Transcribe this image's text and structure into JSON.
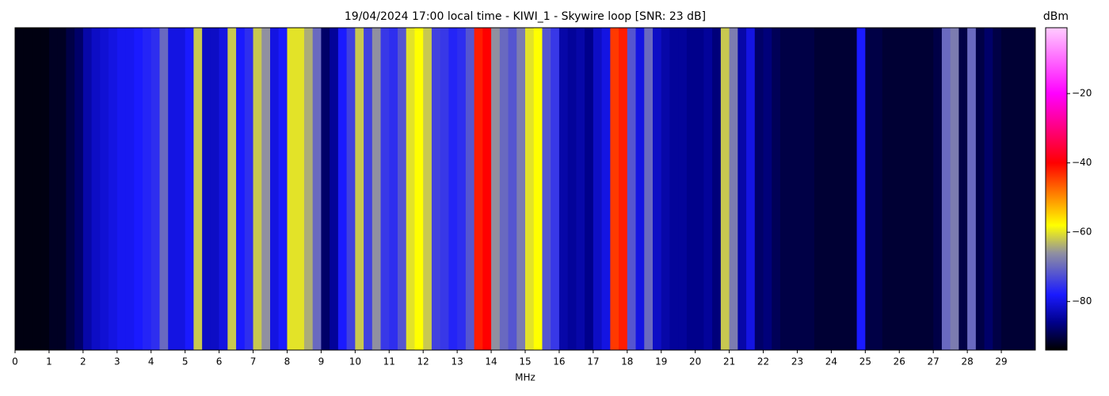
{
  "chart_data": {
    "type": "spectrogram",
    "title": "19/04/2024 17:00 local time - KIWI_1 - Skywire loop [SNR: 23 dB]",
    "x_label": "MHz",
    "colorbar_label": "dBm",
    "x": [
      0,
      0.25,
      0.5,
      0.75,
      1,
      1.25,
      1.5,
      1.75,
      2,
      2.25,
      2.5,
      2.75,
      3,
      3.25,
      3.5,
      3.75,
      4,
      4.25,
      4.5,
      4.75,
      5,
      5.25,
      5.5,
      5.75,
      6,
      6.25,
      6.5,
      6.75,
      7,
      7.25,
      7.5,
      7.75,
      8,
      8.25,
      8.5,
      8.75,
      9,
      9.25,
      9.5,
      9.75,
      10,
      10.25,
      10.5,
      10.75,
      11,
      11.25,
      11.5,
      11.75,
      12,
      12.25,
      12.5,
      12.75,
      13,
      13.25,
      13.5,
      13.75,
      14,
      14.25,
      14.5,
      14.75,
      15,
      15.25,
      15.5,
      15.75,
      16,
      16.25,
      16.5,
      16.75,
      17,
      17.25,
      17.5,
      17.75,
      18,
      18.25,
      18.5,
      18.75,
      19,
      19.25,
      19.5,
      19.75,
      20,
      20.25,
      20.5,
      20.75,
      21,
      21.25,
      21.5,
      21.75,
      22,
      22.25,
      22.5,
      22.75,
      23,
      23.25,
      23.5,
      23.75,
      24,
      24.25,
      24.5,
      24.75,
      25,
      25.25,
      25.5,
      25.75,
      26,
      26.25,
      26.5,
      26.75,
      27,
      27.25,
      27.5,
      27.75,
      28,
      28.25,
      28.5,
      28.75,
      29,
      29.25,
      29.5,
      29.75
    ],
    "values": [
      -93,
      -93,
      -93,
      -93,
      -92,
      -92,
      -90,
      -88,
      -84,
      -82,
      -81,
      -80,
      -79,
      -79,
      -78,
      -77,
      -76,
      -70,
      -80,
      -80,
      -78,
      -62,
      -82,
      -82,
      -80,
      -62,
      -78,
      -76,
      -62,
      -66,
      -80,
      -78,
      -60,
      -60,
      -64,
      -70,
      -88,
      -85,
      -78,
      -74,
      -62,
      -74,
      -66,
      -75,
      -76,
      -72,
      -60,
      -58,
      -62,
      -74,
      -75,
      -77,
      -76,
      -72,
      -42,
      -40,
      -66,
      -70,
      -72,
      -68,
      -60,
      -58,
      -72,
      -75,
      -84,
      -85,
      -84,
      -86,
      -82,
      -80,
      -44,
      -42,
      -72,
      -80,
      -70,
      -82,
      -84,
      -85,
      -85,
      -86,
      -86,
      -85,
      -87,
      -62,
      -68,
      -84,
      -80,
      -88,
      -87,
      -89,
      -90,
      -90,
      -90,
      -90,
      -91,
      -91,
      -91,
      -91,
      -91,
      -78,
      -90,
      -90,
      -91,
      -91,
      -91,
      -91,
      -91,
      -91,
      -90,
      -70,
      -68,
      -90,
      -70,
      -90,
      -88,
      -90,
      -91,
      -91,
      -91,
      -91
    ],
    "xlim": [
      0,
      30
    ],
    "xticks": [
      0,
      1,
      2,
      3,
      4,
      5,
      6,
      7,
      8,
      9,
      10,
      11,
      12,
      13,
      14,
      15,
      16,
      17,
      18,
      19,
      20,
      21,
      22,
      23,
      24,
      25,
      26,
      27,
      28,
      29
    ],
    "zlim": [
      -94,
      -1
    ],
    "zticks": [
      {
        "value": -20,
        "label": "−20"
      },
      {
        "value": -40,
        "label": "−40"
      },
      {
        "value": -60,
        "label": "−60"
      },
      {
        "value": -80,
        "label": "−80"
      }
    ],
    "colorscale": [
      [
        -94,
        "#000000"
      ],
      [
        -86,
        "#00008b"
      ],
      [
        -78,
        "#1a1aff"
      ],
      [
        -66,
        "#9090a0"
      ],
      [
        -58,
        "#ffff00"
      ],
      [
        -40,
        "#ff0000"
      ],
      [
        -20,
        "#ff00ff"
      ],
      [
        -1,
        "#ffccff"
      ]
    ]
  }
}
